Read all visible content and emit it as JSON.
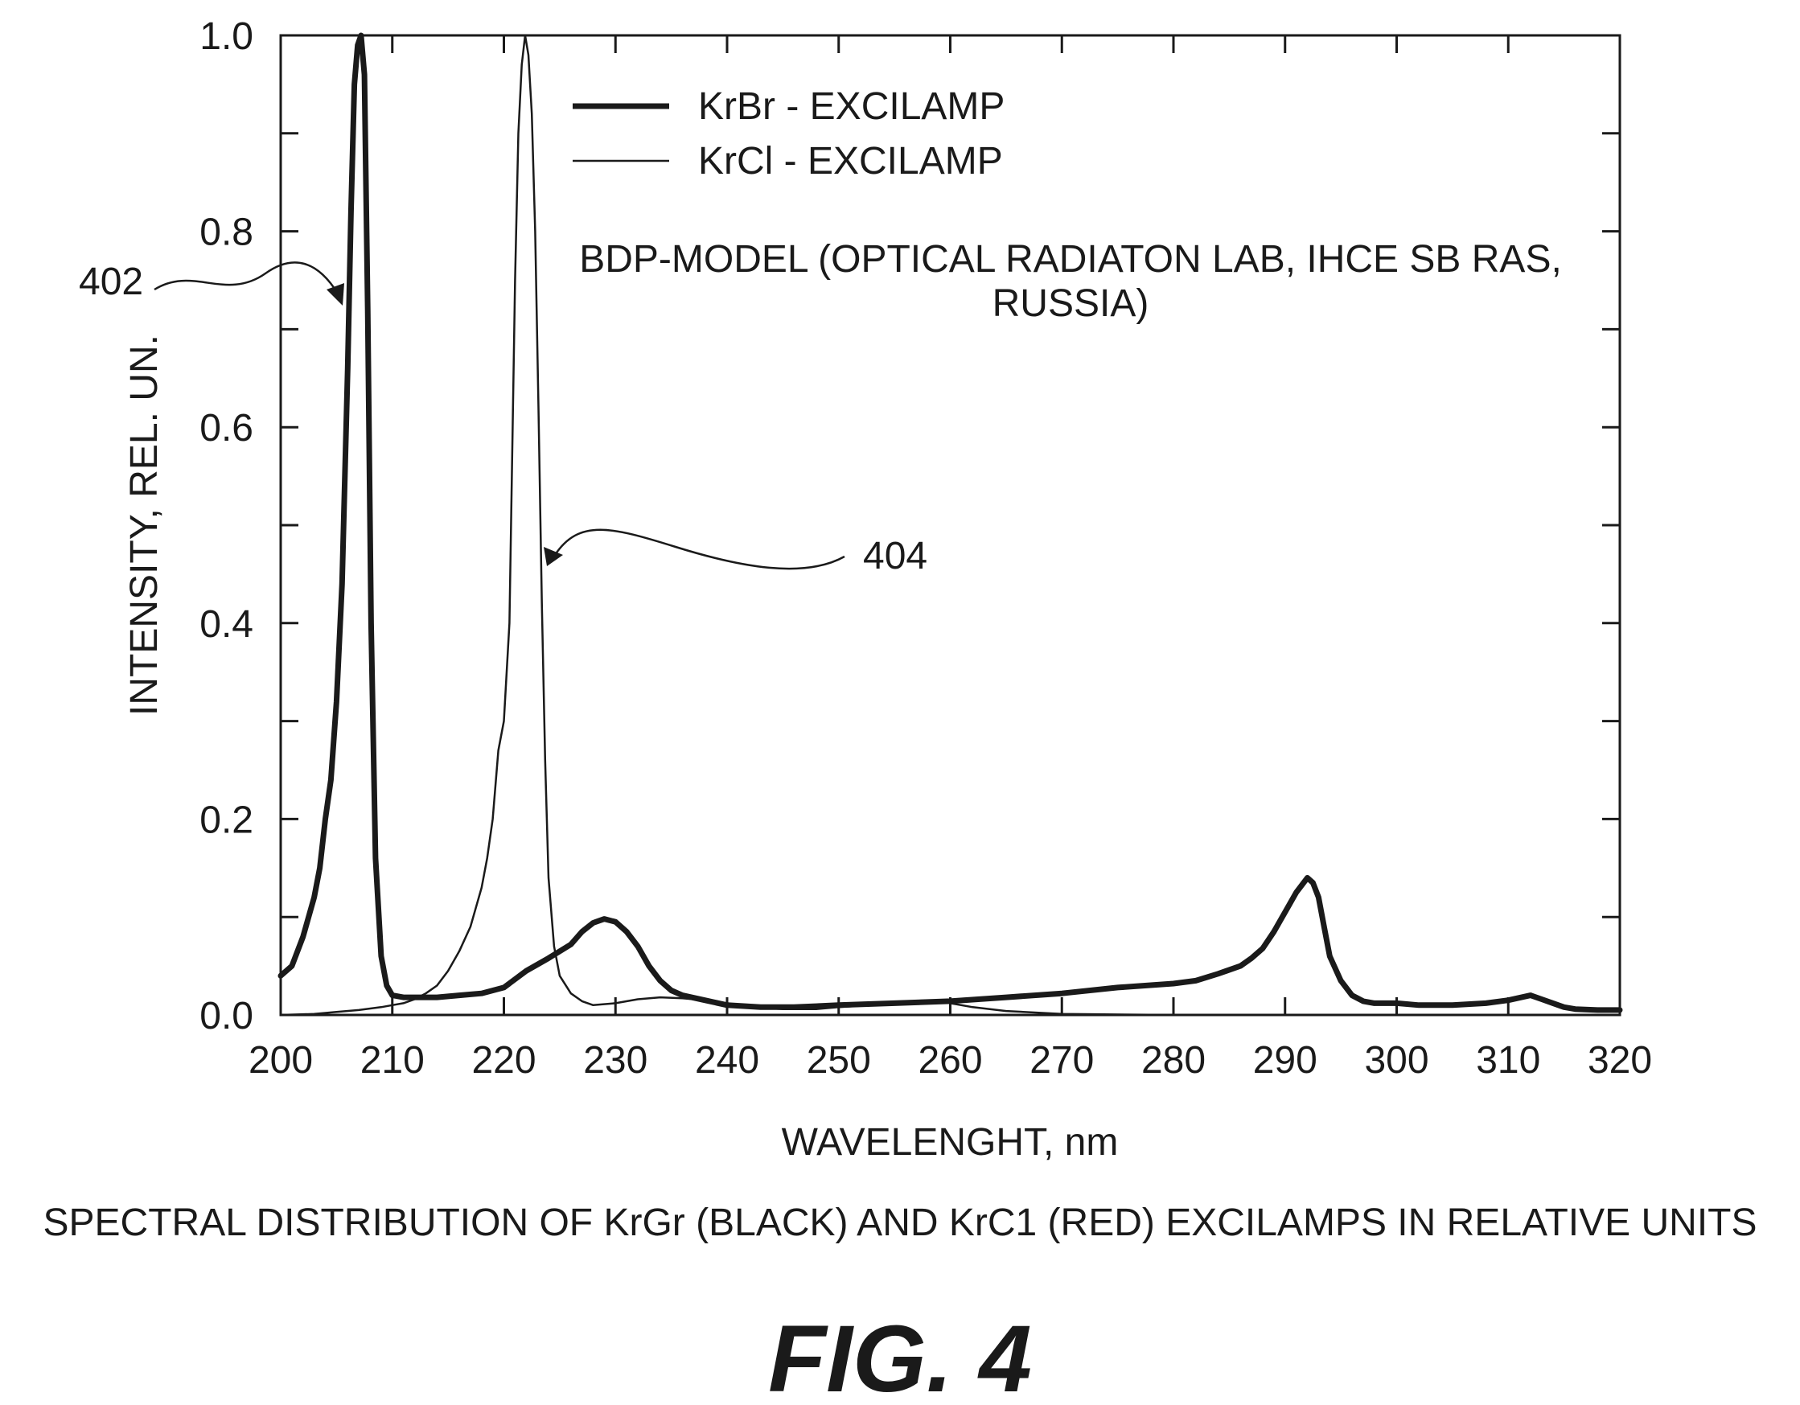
{
  "chart_data": {
    "type": "line",
    "xlabel": "WAVELENGHT, nm",
    "ylabel": "INTENSITY, REL. UN.",
    "xlim": [
      200,
      320
    ],
    "ylim": [
      0.0,
      1.0
    ],
    "x_ticks": [
      200,
      210,
      220,
      230,
      240,
      250,
      260,
      270,
      280,
      290,
      300,
      310,
      320
    ],
    "y_ticks": [
      0.0,
      0.2,
      0.4,
      0.6,
      0.8,
      1.0
    ],
    "x_tick_labels": [
      "200",
      "210",
      "220",
      "230",
      "240",
      "250",
      "260",
      "270",
      "280",
      "290",
      "300",
      "310",
      "320"
    ],
    "y_tick_labels": [
      "0.0",
      "0.2",
      "0.4",
      "0.6",
      "0.8",
      "1.0"
    ],
    "grid": false,
    "legend_position": "top-center",
    "series": [
      {
        "name": "KrBr - EXCILAMP",
        "style": "thick",
        "x": [
          200,
          201,
          202,
          203,
          203.5,
          204,
          204.5,
          205,
          205.5,
          206,
          206.3,
          206.6,
          206.9,
          207.2,
          207.5,
          207.8,
          208.1,
          208.5,
          209,
          209.5,
          210,
          211,
          212,
          214,
          216,
          218,
          220,
          222,
          224,
          226,
          227,
          228,
          229,
          230,
          231,
          232,
          233,
          234,
          235,
          236,
          238,
          240,
          243,
          246,
          250,
          255,
          260,
          265,
          270,
          275,
          280,
          282,
          284,
          286,
          287,
          288,
          289,
          290,
          291,
          292,
          292.5,
          293,
          293.5,
          294,
          295,
          296,
          297,
          298,
          300,
          302,
          305,
          308,
          310,
          312,
          313,
          314,
          315,
          316,
          318,
          320
        ],
        "y": [
          0.04,
          0.05,
          0.08,
          0.12,
          0.15,
          0.2,
          0.24,
          0.32,
          0.44,
          0.66,
          0.82,
          0.95,
          0.99,
          1.0,
          0.96,
          0.72,
          0.4,
          0.16,
          0.06,
          0.03,
          0.02,
          0.018,
          0.018,
          0.018,
          0.02,
          0.022,
          0.028,
          0.045,
          0.058,
          0.072,
          0.085,
          0.094,
          0.098,
          0.095,
          0.085,
          0.07,
          0.05,
          0.035,
          0.025,
          0.02,
          0.015,
          0.01,
          0.008,
          0.008,
          0.01,
          0.012,
          0.014,
          0.018,
          0.022,
          0.028,
          0.032,
          0.035,
          0.042,
          0.05,
          0.058,
          0.068,
          0.085,
          0.105,
          0.125,
          0.14,
          0.135,
          0.12,
          0.09,
          0.06,
          0.035,
          0.02,
          0.014,
          0.012,
          0.012,
          0.01,
          0.01,
          0.012,
          0.015,
          0.02,
          0.016,
          0.012,
          0.008,
          0.006,
          0.005,
          0.005
        ]
      },
      {
        "name": "KrCl - EXCILAMP",
        "style": "thin",
        "x": [
          200,
          203,
          205,
          207,
          209,
          210,
          211,
          212,
          213,
          214,
          215,
          216,
          217,
          218,
          218.5,
          219,
          219.5,
          220,
          220.5,
          221,
          221.3,
          221.6,
          221.9,
          222.2,
          222.5,
          222.8,
          223.1,
          223.4,
          223.7,
          224,
          224.5,
          225,
          226,
          227,
          228,
          230,
          232,
          234,
          236,
          238,
          240,
          242,
          245,
          248,
          250,
          253,
          256,
          258,
          260,
          262,
          265,
          270,
          280,
          290,
          300,
          310,
          320
        ],
        "y": [
          0.0,
          0.001,
          0.003,
          0.005,
          0.008,
          0.01,
          0.012,
          0.016,
          0.022,
          0.03,
          0.045,
          0.065,
          0.09,
          0.13,
          0.16,
          0.2,
          0.27,
          0.3,
          0.4,
          0.75,
          0.9,
          0.97,
          1.0,
          0.98,
          0.92,
          0.8,
          0.62,
          0.42,
          0.26,
          0.14,
          0.07,
          0.04,
          0.022,
          0.014,
          0.01,
          0.012,
          0.016,
          0.018,
          0.017,
          0.015,
          0.012,
          0.008,
          0.006,
          0.006,
          0.008,
          0.01,
          0.013,
          0.014,
          0.012,
          0.008,
          0.004,
          0.001,
          0.0,
          0.0,
          0.0,
          0.0,
          0.0
        ]
      }
    ],
    "annotations": {
      "note_line1": "BDP-MODEL (OPTICAL RADIATON LAB, IHCE SB RAS,",
      "note_line2": "RUSSIA)",
      "ref_402": "402",
      "ref_404": "404"
    }
  },
  "caption": "SPECTRAL DISTRIBUTION OF KrGr (BLACK) AND KrC1 (RED) EXCILAMPS IN RELATIVE UNITS",
  "figure_label": "FIG. 4"
}
